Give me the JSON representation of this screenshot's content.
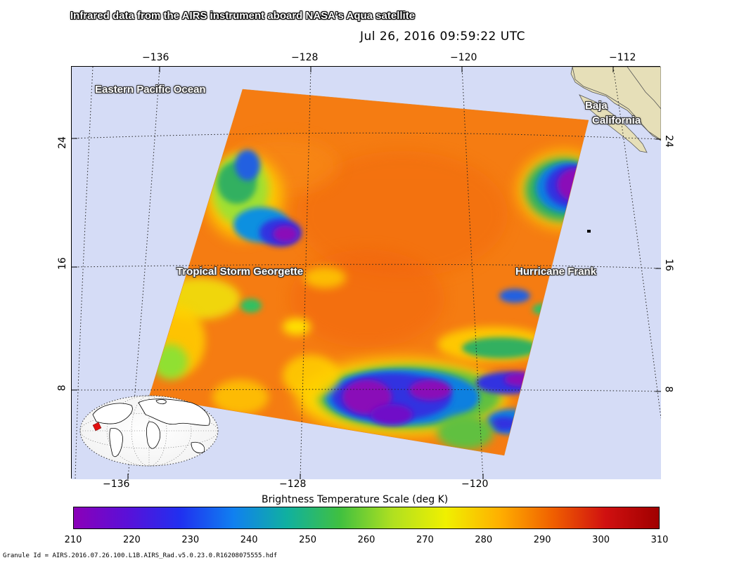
{
  "header": {
    "title": "Infrared data from the AIRS instrument aboard NASA's Aqua satellite",
    "timestamp": "Jul 26, 2016 09:59:22 UTC"
  },
  "map": {
    "top_axis_ticks": [
      "−136",
      "−128",
      "−120",
      "−112"
    ],
    "bottom_axis_ticks": [
      "−136",
      "−128",
      "−120"
    ],
    "left_axis_ticks": [
      "24",
      "16",
      "8"
    ],
    "right_axis_ticks": [
      "24",
      "16",
      "8"
    ],
    "labels": {
      "ocean": "Eastern Pacific Ocean",
      "baja_line1": "Baja",
      "baja_line2": "California",
      "georgette": "Tropical Storm Georgette",
      "frank": "Hurricane Frank"
    },
    "colors": {
      "background": "#d5dcf6",
      "land": "#e6dfb8",
      "warm": "#f57c12",
      "cold_core": "#8a0fb8"
    }
  },
  "colorbar": {
    "title": "Brightness Temperature Scale (deg K)",
    "ticks": [
      "210",
      "220",
      "230",
      "240",
      "250",
      "260",
      "270",
      "280",
      "290",
      "300",
      "310"
    ],
    "range": [
      210,
      310
    ],
    "colors": [
      "#8b00b8",
      "#5a10d8",
      "#2030f0",
      "#1080f0",
      "#10b0a0",
      "#40c040",
      "#b0e020",
      "#f0f000",
      "#ffb000",
      "#f06000",
      "#d01010",
      "#a00000"
    ]
  },
  "footer": {
    "granule": "Granule Id = AIRS.2016.07.26.100.L1B.AIRS_Rad.v5.0.23.0.R16208075555.hdf"
  }
}
